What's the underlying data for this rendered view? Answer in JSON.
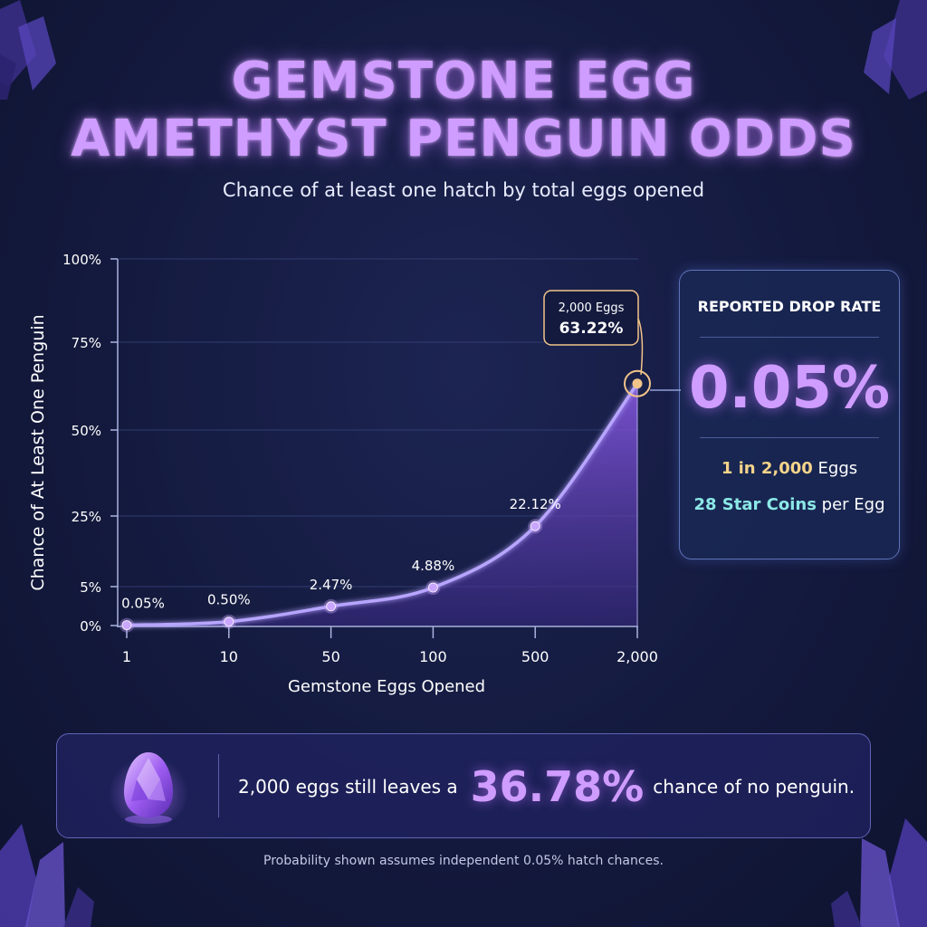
{
  "header": {
    "title_line1": "GEMSTONE EGG",
    "title_line2": "AMETHYST PENGUIN ODDS",
    "subtitle": "Chance of at least one hatch by total eggs opened"
  },
  "chart_data": {
    "type": "area",
    "title": "GEMSTONE EGG AMETHYST PENGUIN ODDS",
    "subtitle": "Chance of at least one hatch by total eggs opened",
    "xlabel": "Gemstone Eggs Opened",
    "ylabel": "Chance of At Least One Penguin",
    "categories": [
      "1",
      "10",
      "50",
      "100",
      "500",
      "2,000"
    ],
    "x": [
      1,
      10,
      50,
      100,
      500,
      2000
    ],
    "values": [
      0.05,
      0.5,
      2.47,
      4.88,
      22.12,
      63.22
    ],
    "data_labels": [
      "0.05%",
      "0.50%",
      "2.47%",
      "4.88%",
      "22.12%",
      "63.22%"
    ],
    "y_ticks": [
      0,
      5,
      25,
      50,
      75,
      100
    ],
    "y_tick_labels": [
      "0%",
      "5%",
      "25%",
      "50%",
      "75%",
      "100%"
    ],
    "ylim": [
      0,
      100
    ],
    "grid": true,
    "legend": "none",
    "highlight": {
      "label_top": "2,000 Eggs",
      "label_value": "63.22%"
    },
    "colors": {
      "line": "#b7a5ff",
      "fill": "#7b4fd6",
      "point": "#c9a6ff",
      "highlight": "#f2c48a"
    }
  },
  "info_card": {
    "title": "REPORTED DROP RATE",
    "rate": "0.05%",
    "odds_strong": "1 in 2,000",
    "odds_rest": " Eggs",
    "cost_strong": "28 Star Coins",
    "cost_rest": " per Egg"
  },
  "callout": {
    "prefix": "2,000 eggs still leaves a",
    "value": "36.78%",
    "suffix": "chance of no penguin.",
    "icon": "amethyst-egg-icon"
  },
  "footnote": "Probability shown assumes independent 0.05% hatch chances.",
  "colors": {
    "background": "#141a3e",
    "accent_purple": "#cf9cff",
    "gold": "#f5d48a",
    "teal": "#8be8e6",
    "card_border": "#5d72b8"
  }
}
